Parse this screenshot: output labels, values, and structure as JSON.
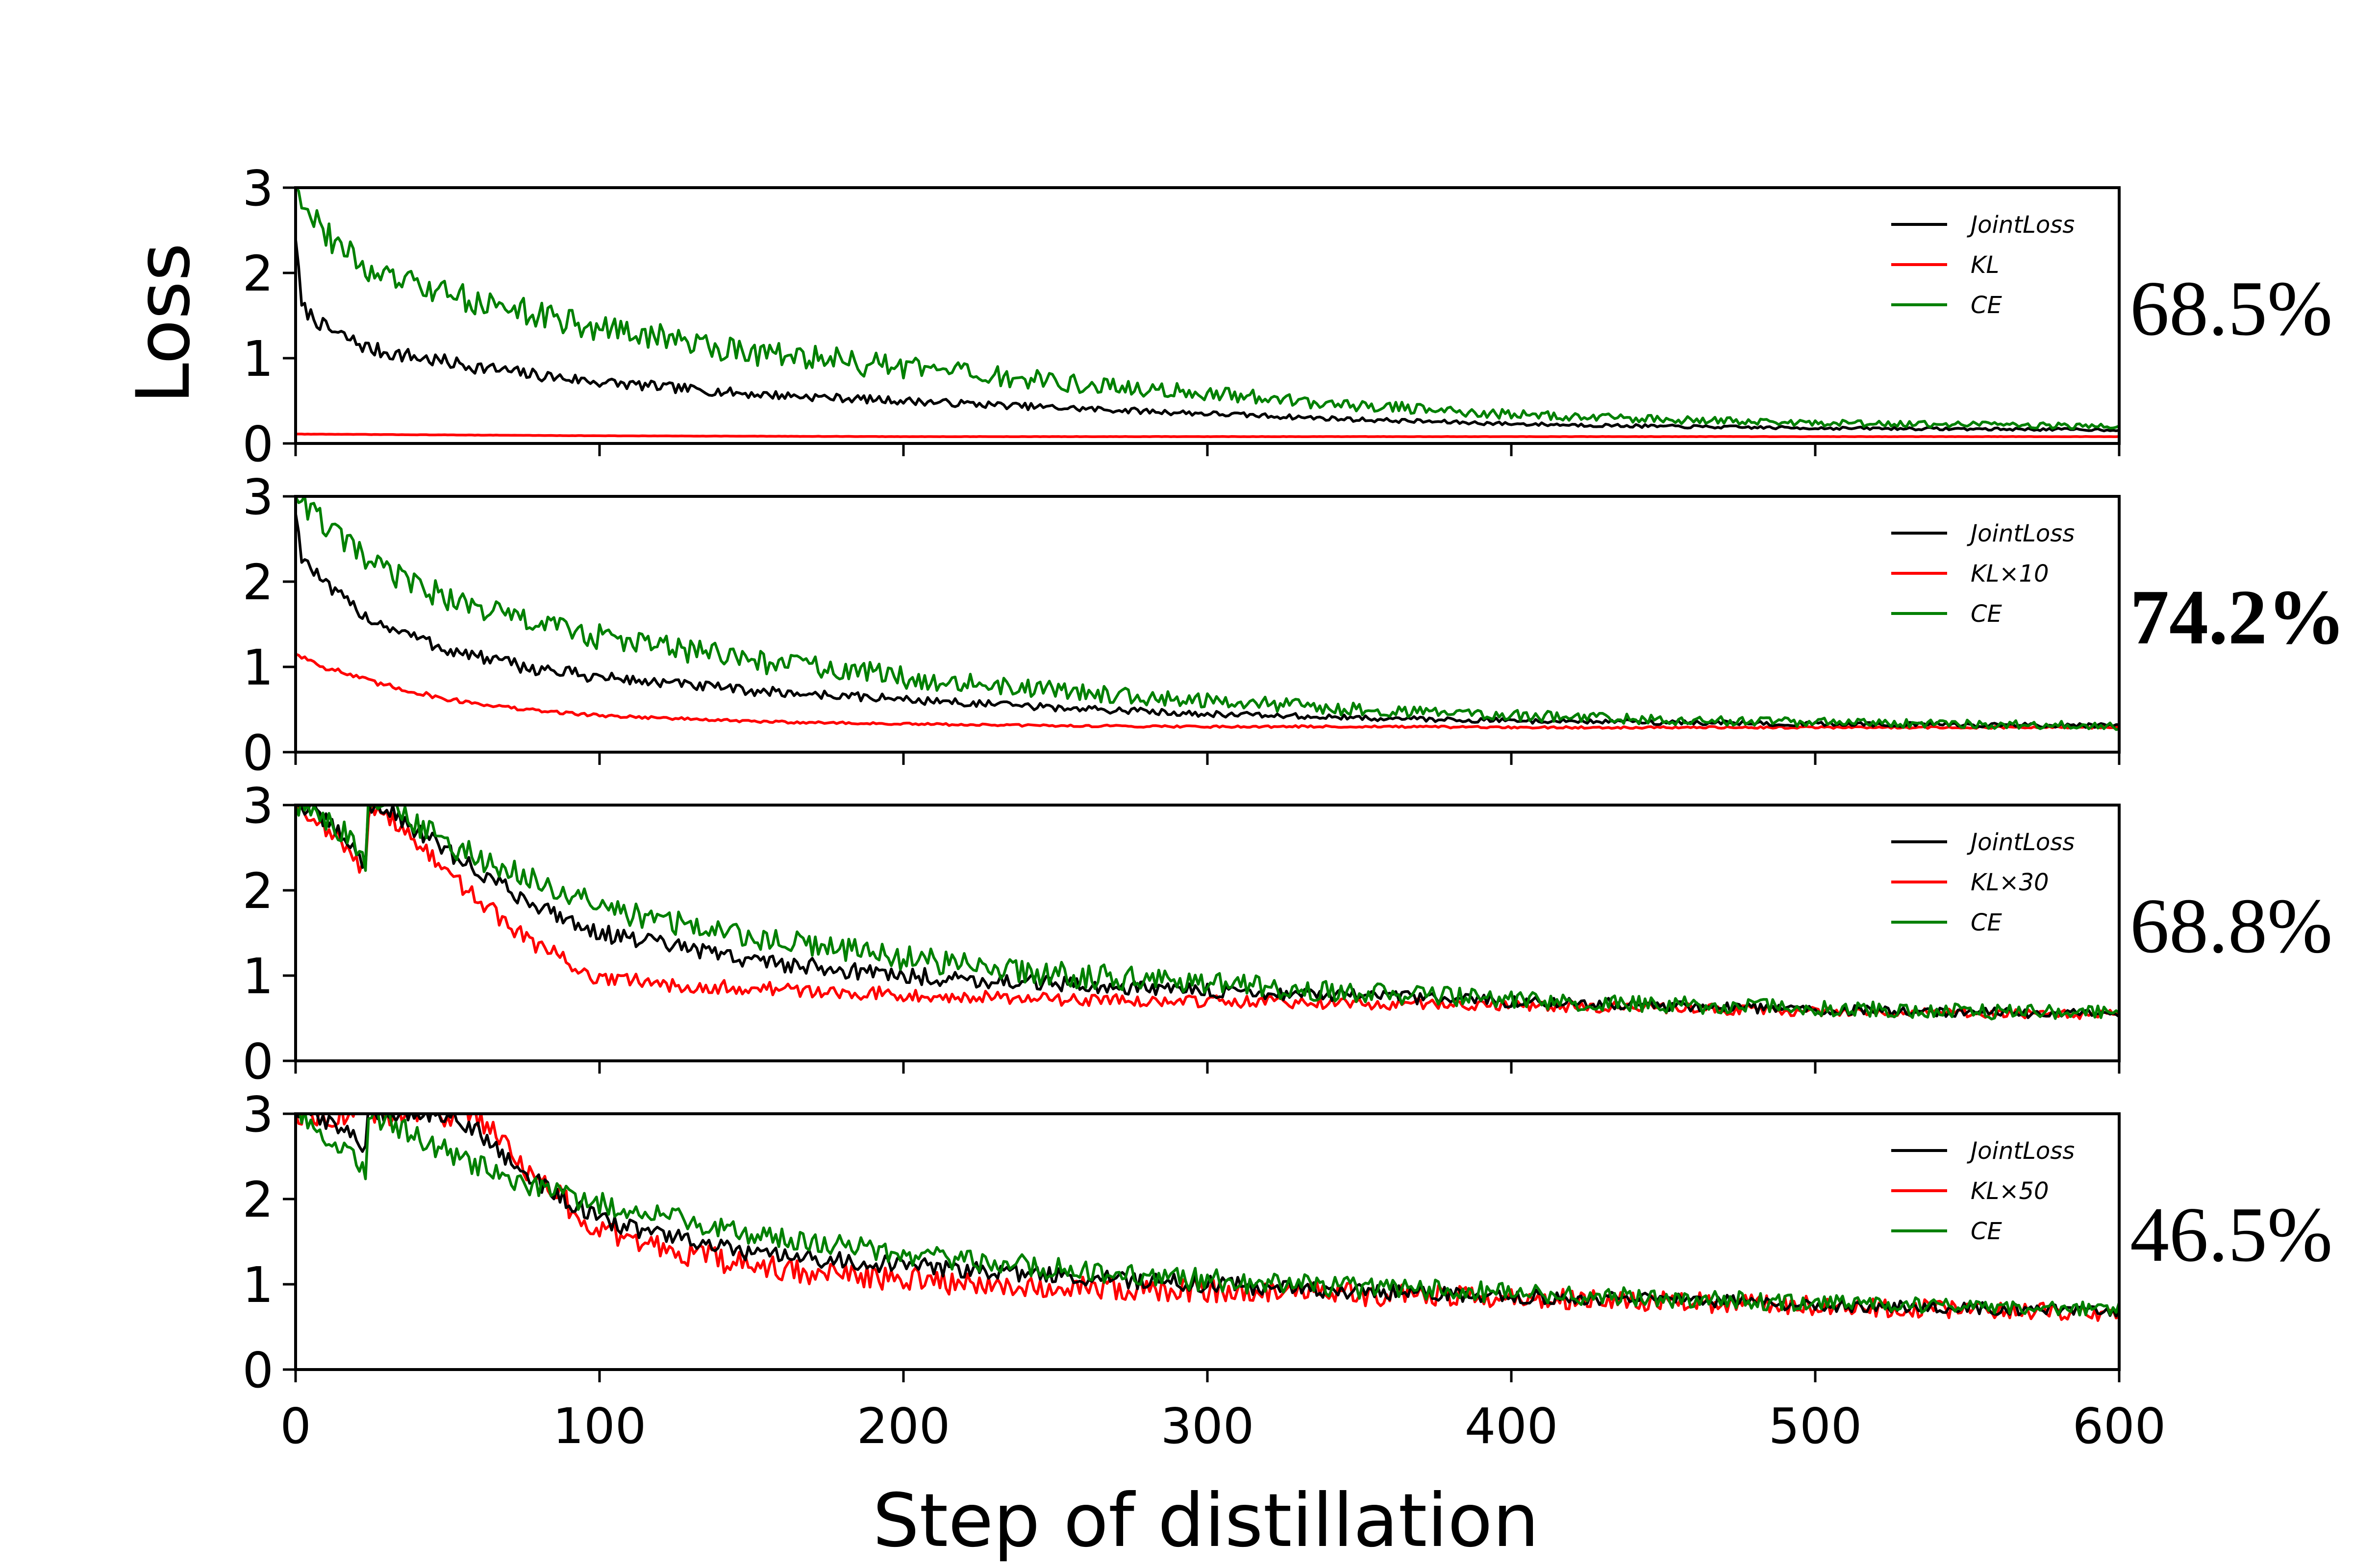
{
  "chart_data": [
    {
      "type": "line",
      "xlabel": "Step of distillation",
      "ylabel": "Loss",
      "xlim": [
        0,
        600
      ],
      "ylim": [
        0,
        3
      ],
      "xticks": [
        "0",
        "100",
        "200",
        "300",
        "400",
        "500",
        "600"
      ],
      "yticks": [
        "0",
        "1",
        "2",
        "3"
      ],
      "accuracy": "68.5%",
      "accuracy_bold": false,
      "legend": [
        "JointLoss",
        "KL",
        "CE"
      ],
      "series": [
        {
          "name": "JointLoss",
          "color": "#000000",
          "x": [
            0,
            2,
            10,
            25,
            50,
            75,
            100,
            150,
            200,
            250,
            300,
            350,
            400,
            450,
            500,
            550,
            600
          ],
          "values": [
            2.4,
            1.6,
            1.35,
            1.1,
            0.95,
            0.82,
            0.72,
            0.58,
            0.5,
            0.42,
            0.35,
            0.28,
            0.23,
            0.2,
            0.18,
            0.17,
            0.16
          ],
          "noise": 0.09
        },
        {
          "name": "KL",
          "color": "#ff0000",
          "x": [
            0,
            100,
            200,
            300,
            400,
            500,
            600
          ],
          "values": [
            0.11,
            0.09,
            0.08,
            0.08,
            0.08,
            0.08,
            0.08
          ],
          "noise": 0.01
        },
        {
          "name": "CE",
          "color": "#008000",
          "x": [
            0,
            2,
            10,
            25,
            50,
            75,
            100,
            150,
            200,
            250,
            300,
            350,
            400,
            450,
            500,
            550,
            600
          ],
          "values": [
            3.0,
            2.9,
            2.45,
            2.0,
            1.75,
            1.55,
            1.35,
            1.08,
            0.88,
            0.72,
            0.58,
            0.45,
            0.34,
            0.28,
            0.24,
            0.22,
            0.2
          ],
          "noise": 0.16
        }
      ]
    },
    {
      "type": "line",
      "xlabel": "Step of distillation",
      "ylabel": "Loss",
      "xlim": [
        0,
        600
      ],
      "ylim": [
        0,
        3
      ],
      "xticks": [
        "0",
        "100",
        "200",
        "300",
        "400",
        "500",
        "600"
      ],
      "yticks": [
        "0",
        "1",
        "2",
        "3"
      ],
      "accuracy": "74.2%",
      "accuracy_bold": true,
      "legend": [
        "JointLoss",
        "KL×10",
        "CE"
      ],
      "series": [
        {
          "name": "JointLoss",
          "color": "#000000",
          "x": [
            0,
            2,
            10,
            25,
            50,
            75,
            100,
            150,
            200,
            250,
            300,
            350,
            400,
            450,
            500,
            550,
            600
          ],
          "values": [
            2.8,
            2.3,
            1.95,
            1.55,
            1.2,
            1.0,
            0.88,
            0.72,
            0.62,
            0.52,
            0.45,
            0.4,
            0.37,
            0.35,
            0.33,
            0.32,
            0.31
          ],
          "noise": 0.08
        },
        {
          "name": "KL×10",
          "color": "#ff0000",
          "x": [
            0,
            2,
            10,
            25,
            50,
            75,
            100,
            150,
            200,
            250,
            300,
            350,
            400,
            450,
            500,
            550,
            600
          ],
          "values": [
            1.15,
            1.12,
            1.0,
            0.82,
            0.62,
            0.5,
            0.43,
            0.36,
            0.33,
            0.31,
            0.3,
            0.3,
            0.29,
            0.29,
            0.29,
            0.29,
            0.29
          ],
          "noise": 0.04
        },
        {
          "name": "CE",
          "color": "#008000",
          "x": [
            0,
            2,
            10,
            25,
            50,
            75,
            100,
            150,
            200,
            250,
            300,
            350,
            400,
            450,
            500,
            550,
            600
          ],
          "values": [
            3.0,
            2.95,
            2.65,
            2.2,
            1.8,
            1.55,
            1.35,
            1.08,
            0.88,
            0.72,
            0.6,
            0.5,
            0.43,
            0.38,
            0.35,
            0.33,
            0.31
          ],
          "noise": 0.15
        }
      ]
    },
    {
      "type": "line",
      "xlabel": "Step of distillation",
      "ylabel": "Loss",
      "xlim": [
        0,
        600
      ],
      "ylim": [
        0,
        3
      ],
      "xticks": [
        "0",
        "100",
        "200",
        "300",
        "400",
        "500",
        "600"
      ],
      "yticks": [
        "0",
        "1",
        "2",
        "3"
      ],
      "accuracy": "68.8%",
      "accuracy_bold": false,
      "legend": [
        "JointLoss",
        "KL×30",
        "CE"
      ],
      "series": [
        {
          "name": "JointLoss",
          "color": "#000000",
          "x": [
            0,
            5,
            15,
            23,
            24,
            25,
            30,
            50,
            75,
            100,
            150,
            200,
            250,
            300,
            350,
            400,
            450,
            500,
            550,
            600
          ],
          "values": [
            3.0,
            2.95,
            2.65,
            2.3,
            3.0,
            3.0,
            2.95,
            2.45,
            1.9,
            1.5,
            1.18,
            1.0,
            0.9,
            0.82,
            0.76,
            0.7,
            0.65,
            0.6,
            0.57,
            0.55
          ],
          "noise": 0.1
        },
        {
          "name": "KL×30",
          "color": "#ff0000",
          "x": [
            0,
            5,
            15,
            23,
            24,
            25,
            30,
            50,
            75,
            100,
            150,
            200,
            250,
            300,
            350,
            400,
            450,
            500,
            550,
            600
          ],
          "values": [
            3.0,
            2.9,
            2.55,
            2.2,
            2.9,
            3.0,
            2.9,
            2.2,
            1.45,
            0.95,
            0.85,
            0.78,
            0.72,
            0.7,
            0.67,
            0.65,
            0.62,
            0.58,
            0.56,
            0.54
          ],
          "noise": 0.1
        },
        {
          "name": "CE",
          "color": "#008000",
          "x": [
            0,
            5,
            15,
            23,
            24,
            25,
            30,
            50,
            75,
            100,
            150,
            200,
            250,
            300,
            350,
            400,
            450,
            500,
            550,
            600
          ],
          "values": [
            3.0,
            2.95,
            2.7,
            2.35,
            3.0,
            3.0,
            3.0,
            2.55,
            2.15,
            1.8,
            1.45,
            1.2,
            1.02,
            0.9,
            0.8,
            0.72,
            0.66,
            0.62,
            0.58,
            0.56
          ],
          "noise": 0.15
        }
      ]
    },
    {
      "type": "line",
      "xlabel": "Step of distillation",
      "ylabel": "Loss",
      "xlim": [
        0,
        600
      ],
      "ylim": [
        0,
        3
      ],
      "xticks": [
        "0",
        "100",
        "200",
        "300",
        "400",
        "500",
        "600"
      ],
      "yticks": [
        "0",
        "1",
        "2",
        "3"
      ],
      "accuracy": "46.5%",
      "accuracy_bold": false,
      "legend": [
        "JointLoss",
        "KL×50",
        "CE"
      ],
      "series": [
        {
          "name": "JointLoss",
          "color": "#000000",
          "x": [
            0,
            5,
            15,
            23,
            24,
            25,
            50,
            60,
            75,
            100,
            150,
            200,
            250,
            300,
            350,
            400,
            450,
            500,
            550,
            600
          ],
          "values": [
            3.0,
            3.0,
            2.85,
            2.6,
            3.0,
            3.0,
            3.0,
            2.8,
            2.3,
            1.75,
            1.35,
            1.22,
            1.1,
            1.0,
            0.92,
            0.86,
            0.82,
            0.76,
            0.72,
            0.68
          ],
          "noise": 0.1
        },
        {
          "name": "KL×50",
          "color": "#ff0000",
          "x": [
            0,
            25,
            50,
            60,
            75,
            100,
            150,
            200,
            250,
            300,
            350,
            400,
            450,
            500,
            550,
            600
          ],
          "values": [
            3.0,
            3.0,
            3.0,
            3.0,
            2.4,
            1.6,
            1.2,
            1.05,
            0.98,
            0.92,
            0.88,
            0.84,
            0.8,
            0.75,
            0.7,
            0.66
          ],
          "noise": 0.15
        },
        {
          "name": "CE",
          "color": "#008000",
          "x": [
            0,
            5,
            15,
            23,
            24,
            25,
            50,
            75,
            100,
            150,
            200,
            250,
            300,
            350,
            400,
            450,
            500,
            550,
            600
          ],
          "values": [
            3.0,
            2.85,
            2.6,
            2.35,
            3.0,
            3.0,
            2.55,
            2.15,
            1.95,
            1.6,
            1.36,
            1.18,
            1.05,
            0.96,
            0.9,
            0.84,
            0.78,
            0.74,
            0.7
          ],
          "noise": 0.13
        }
      ]
    }
  ]
}
